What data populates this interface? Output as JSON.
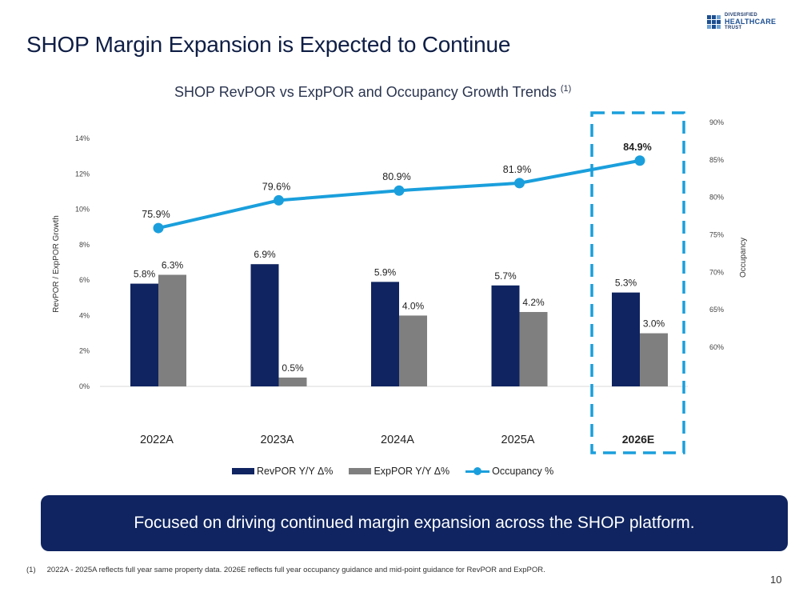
{
  "slide": {
    "title": "SHOP Margin Expansion is Expected to Continue",
    "page_number": "10",
    "logo": {
      "line1": "DIVERSIFIED",
      "line2": "HEALTHCARE",
      "line3": "TRUST"
    },
    "callout": "Focused on driving continued margin expansion across the SHOP platform.",
    "footnote": {
      "marker": "(1)",
      "text": "2022A - 2025A reflects full year same property data. 2026E reflects full year occupancy guidance and mid-point guidance for RevPOR and ExpPOR."
    }
  },
  "colors": {
    "revpor": "#0f2460",
    "exppor": "#7f7f7f",
    "occupancy": "#1a9fdc",
    "highlight_box": "#1a9fdc"
  },
  "chart_data": {
    "type": "bar",
    "title": "SHOP RevPOR vs ExpPOR and Occupancy Growth Trends",
    "title_superscript": "(1)",
    "categories": [
      "2022A",
      "2023A",
      "2024A",
      "2025A",
      "2026E"
    ],
    "highlighted_category": "2026E",
    "ylabel": "RevPOR / ExpPOR Growth",
    "ylim": [
      0,
      14
    ],
    "yticks": [
      "0%",
      "2%",
      "4%",
      "6%",
      "8%",
      "10%",
      "12%",
      "14%"
    ],
    "y2label": "Occupancy",
    "y2lim": [
      60,
      90
    ],
    "y2ticks": [
      "60%",
      "65%",
      "70%",
      "75%",
      "80%",
      "85%",
      "90%"
    ],
    "grid": false,
    "legend_position": "bottom",
    "series": [
      {
        "name": "RevPOR Y/Y Δ%",
        "type": "bar",
        "axis": "left",
        "values": [
          5.8,
          6.9,
          5.9,
          5.7,
          5.3
        ],
        "labels": [
          "5.8%",
          "6.9%",
          "5.9%",
          "5.7%",
          "5.3%"
        ]
      },
      {
        "name": "ExpPOR Y/Y Δ%",
        "type": "bar",
        "axis": "left",
        "values": [
          6.3,
          0.5,
          4.0,
          4.2,
          3.0
        ],
        "labels": [
          "6.3%",
          "0.5%",
          "4.0%",
          "4.2%",
          "3.0%"
        ]
      },
      {
        "name": "Occupancy %",
        "type": "line",
        "axis": "right",
        "values": [
          75.9,
          79.6,
          80.9,
          81.9,
          84.9
        ],
        "labels": [
          "75.9%",
          "79.6%",
          "80.9%",
          "81.9%",
          "84.9%"
        ]
      }
    ]
  }
}
